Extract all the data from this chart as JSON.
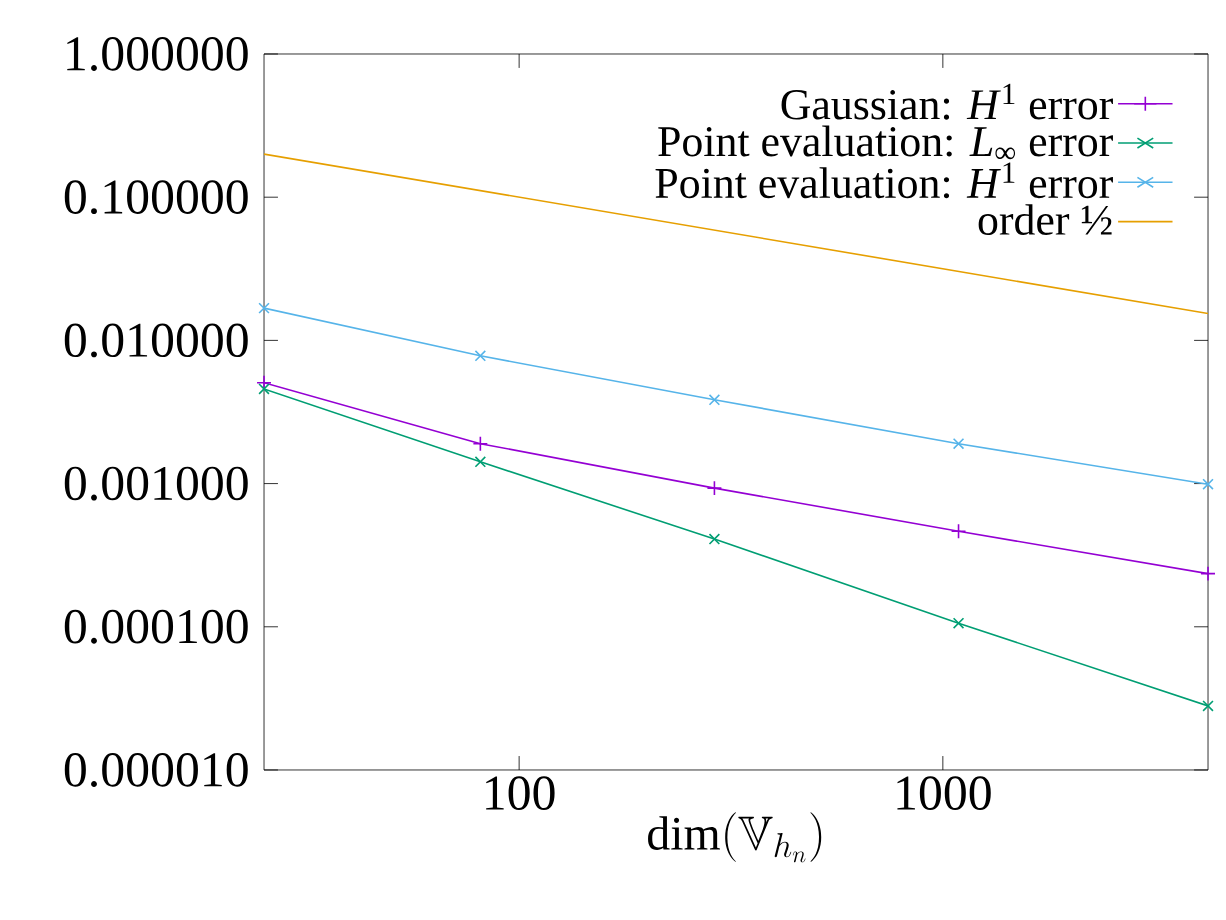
{
  "chart_data": {
    "type": "line",
    "xlabel": "\\dim(\\mathbb{V}_{h_n})",
    "log": "xy",
    "x": [
      25,
      81,
      289,
      1089,
      4225
    ],
    "xlim": [
      25,
      4225
    ],
    "xticks": [
      100,
      1000
    ],
    "ylim": [
      1e-05,
      1
    ],
    "yticks": [
      {
        "value": 1e-05,
        "label": "0.000010"
      },
      {
        "value": 0.0001,
        "label": "0.000100"
      },
      {
        "value": 0.001,
        "label": "0.001000"
      },
      {
        "value": 0.01,
        "label": "0.010000"
      },
      {
        "value": 0.1,
        "label": "0.100000"
      },
      {
        "value": 1,
        "label": "1.000000"
      }
    ],
    "legend": "top right",
    "grid": false,
    "series": [
      {
        "name": "Gaussian: *H*$^{1}$ error",
        "color": "#9400d3",
        "marker": "plus",
        "values": [
          0.00506,
          0.0019,
          0.00093,
          0.000465,
          0.000235
        ]
      },
      {
        "name": "Point evaluation: *L*$_{∞}$ error",
        "color": "#009e73",
        "marker": "cross",
        "values": [
          0.00458,
          0.00142,
          0.00041,
          0.000106,
          2.8e-05
        ]
      },
      {
        "name": "Point evaluation: *H*$^{1}$ error",
        "color": "#56b4e9",
        "marker": "cross",
        "values": [
          0.0168,
          0.00781,
          0.00385,
          0.0019,
          0.00099
        ]
      },
      {
        "name": "order ½",
        "color": "#e69f00",
        "marker": "none",
        "x": [
          25,
          4225
        ],
        "values": [
          0.2,
          0.0154
        ]
      }
    ]
  }
}
